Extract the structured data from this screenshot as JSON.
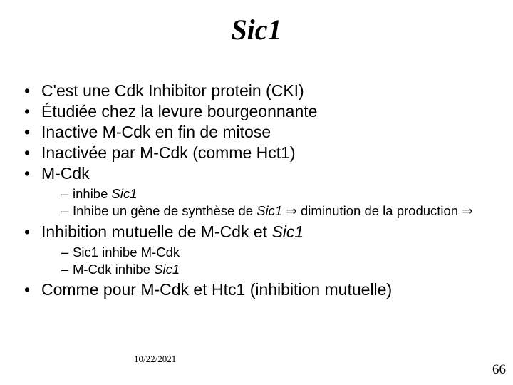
{
  "title": "Sic1",
  "bullets": [
    {
      "text": "C'est une Cdk Inhibitor protein (CKI)"
    },
    {
      "text": "Étudiée chez la levure bourgeonnante"
    },
    {
      "text": "Inactive M-Cdk en fin de mitose"
    },
    {
      "text": "Inactivée par M-Cdk (comme Hct1)"
    },
    {
      "text": "M-Cdk",
      "sub": [
        {
          "html": "inhibe <span class=\"italic\">Sic1</span>"
        },
        {
          "html": "Inhibe un gène de synthèse de <span class=\"italic\">Sic1</span> <span class=\"arrow\">&rArr;</span> diminution de la production <span class=\"arrow\">&rArr;</span>"
        }
      ]
    },
    {
      "html": "Inhibition mutuelle de M-Cdk et <span class=\"italic\">Sic1</span>",
      "sub": [
        {
          "text": "Sic1 inhibe M-Cdk"
        },
        {
          "html": "M-Cdk inhibe <span class=\"italic\">Sic1</span>"
        }
      ]
    },
    {
      "text": "Comme pour M-Cdk et Htc1 (inhibition mutuelle)"
    }
  ],
  "footer": {
    "date": "10/22/2021",
    "page": "66"
  }
}
